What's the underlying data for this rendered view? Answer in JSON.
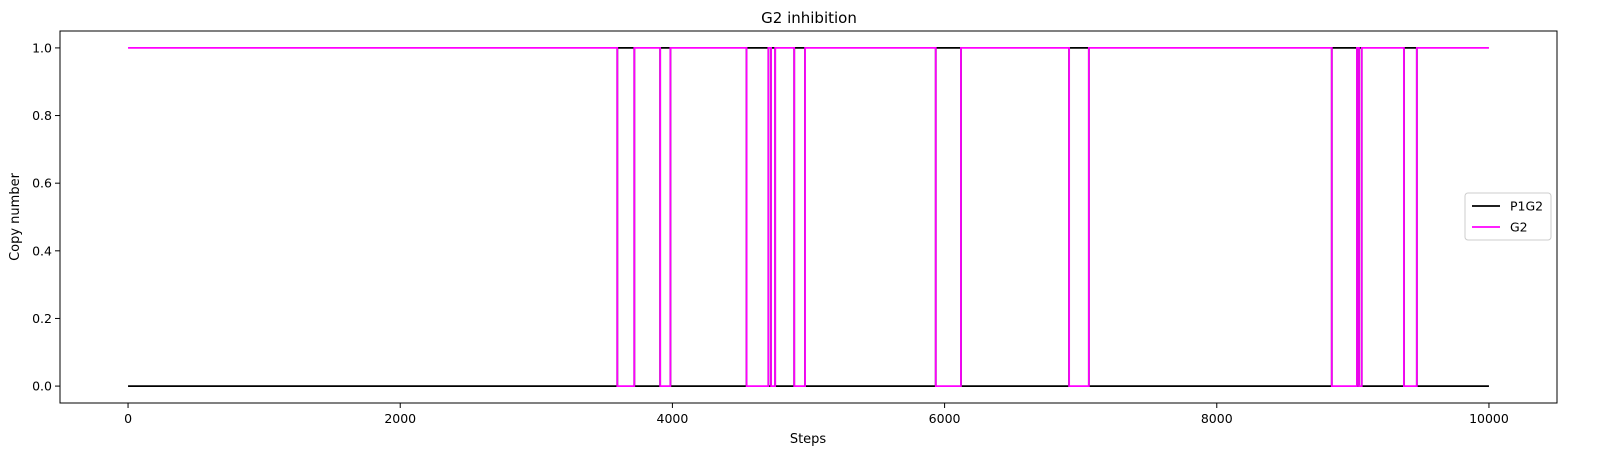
{
  "chart_data": {
    "type": "line",
    "step": true,
    "title": "G2 inhibition",
    "xlabel": "Steps",
    "ylabel": "Copy number",
    "xlim": [
      -500,
      10500
    ],
    "ylim": [
      -0.05,
      1.05
    ],
    "x_ticks": [
      0,
      2000,
      4000,
      6000,
      8000,
      10000
    ],
    "x_tick_labels": [
      "0",
      "2000",
      "4000",
      "6000",
      "8000",
      "10000"
    ],
    "y_ticks": [
      0.0,
      0.2,
      0.4,
      0.6,
      0.8,
      1.0
    ],
    "y_tick_labels": [
      "0.0",
      "0.2",
      "0.4",
      "0.6",
      "0.8",
      "1.0"
    ],
    "grid": false,
    "legend_position": "center-right",
    "series": [
      {
        "name": "P1G2",
        "color": "#000000",
        "x": [
          0,
          3595,
          3595,
          3720,
          3720,
          3910,
          3910,
          3985,
          3985,
          4545,
          4545,
          4705,
          4705,
          4725,
          4725,
          4755,
          4755,
          4895,
          4895,
          4975,
          4975,
          5935,
          5935,
          6120,
          6120,
          6915,
          6915,
          7060,
          7060,
          8845,
          8845,
          9030,
          9030,
          9045,
          9045,
          9065,
          9065,
          9375,
          9375,
          9470,
          9470,
          10000
        ],
        "y": [
          0,
          0,
          1,
          1,
          0,
          0,
          1,
          1,
          0,
          0,
          1,
          1,
          0,
          0,
          1,
          1,
          0,
          0,
          1,
          1,
          0,
          0,
          1,
          1,
          0,
          0,
          1,
          1,
          0,
          0,
          1,
          1,
          0,
          0,
          1,
          1,
          0,
          0,
          1,
          1,
          0,
          0
        ]
      },
      {
        "name": "G2",
        "color": "#ff00ff",
        "x": [
          0,
          3595,
          3595,
          3720,
          3720,
          3910,
          3910,
          3985,
          3985,
          4545,
          4545,
          4705,
          4705,
          4725,
          4725,
          4755,
          4755,
          4895,
          4895,
          4975,
          4975,
          5935,
          5935,
          6120,
          6120,
          6915,
          6915,
          7060,
          7060,
          8845,
          8845,
          9030,
          9030,
          9045,
          9045,
          9065,
          9065,
          9375,
          9375,
          9470,
          9470,
          10000
        ],
        "y": [
          1,
          1,
          0,
          0,
          1,
          1,
          0,
          0,
          1,
          1,
          0,
          0,
          1,
          1,
          0,
          0,
          1,
          1,
          0,
          0,
          1,
          1,
          0,
          0,
          1,
          1,
          0,
          0,
          1,
          1,
          0,
          0,
          1,
          1,
          0,
          0,
          1,
          1,
          0,
          0,
          1,
          1
        ]
      }
    ]
  }
}
